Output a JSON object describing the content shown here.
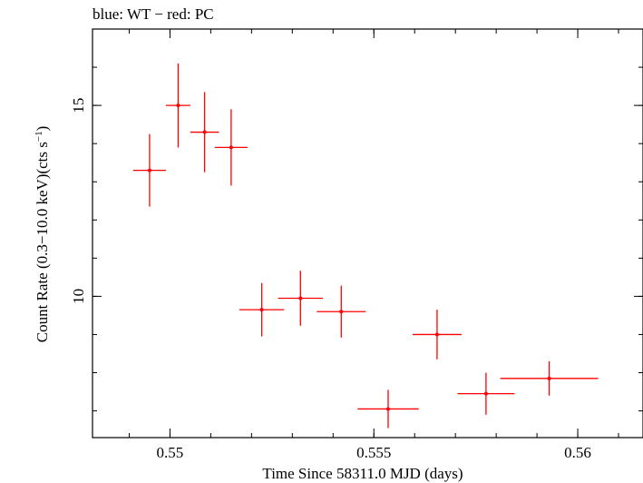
{
  "chart_data": {
    "type": "scatter",
    "title": "blue: WT − red: PC",
    "xlabel": "Time Since 58311.0 MJD (days)",
    "ylabel_parts": {
      "prefix": "Count Rate (0.3−10.0 keV)(cts s",
      "sup": "−1",
      "suffix": ")"
    },
    "xlim": [
      0.5481,
      0.5616
    ],
    "ylim": [
      6.3,
      17.0
    ],
    "x_ticks": [
      {
        "value": 0.55,
        "label": "0.55"
      },
      {
        "value": 0.555,
        "label": "0.555"
      },
      {
        "value": 0.56,
        "label": "0.56"
      }
    ],
    "y_ticks": [
      {
        "value": 10,
        "label": "10"
      },
      {
        "value": 15,
        "label": "15"
      }
    ],
    "grid": false,
    "series": [
      {
        "color": "#ff0000",
        "points": [
          {
            "x": 0.5495,
            "xerr": 0.0004,
            "y": 13.3,
            "yerr": 0.95
          },
          {
            "x": 0.5502,
            "xerr": 0.0003,
            "y": 15.0,
            "yerr": 1.1
          },
          {
            "x": 0.55085,
            "xerr": 0.00035,
            "y": 14.3,
            "yerr": 1.05
          },
          {
            "x": 0.5515,
            "xerr": 0.0004,
            "y": 13.9,
            "yerr": 1.0
          },
          {
            "x": 0.55225,
            "xerr": 0.00055,
            "y": 9.65,
            "yerr": 0.7
          },
          {
            "x": 0.5532,
            "xerr": 0.00055,
            "y": 9.95,
            "yerr": 0.72
          },
          {
            "x": 0.5542,
            "xerr": 0.0006,
            "y": 9.6,
            "yerr": 0.68
          },
          {
            "x": 0.55535,
            "xerr": 0.00075,
            "y": 7.05,
            "yerr": 0.5
          },
          {
            "x": 0.55655,
            "xerr": 0.0006,
            "y": 9.0,
            "yerr": 0.65
          },
          {
            "x": 0.55775,
            "xerr": 0.0007,
            "y": 7.45,
            "yerr": 0.55
          },
          {
            "x": 0.5593,
            "xerr": 0.0012,
            "y": 7.85,
            "yerr": 0.45
          }
        ]
      }
    ]
  }
}
